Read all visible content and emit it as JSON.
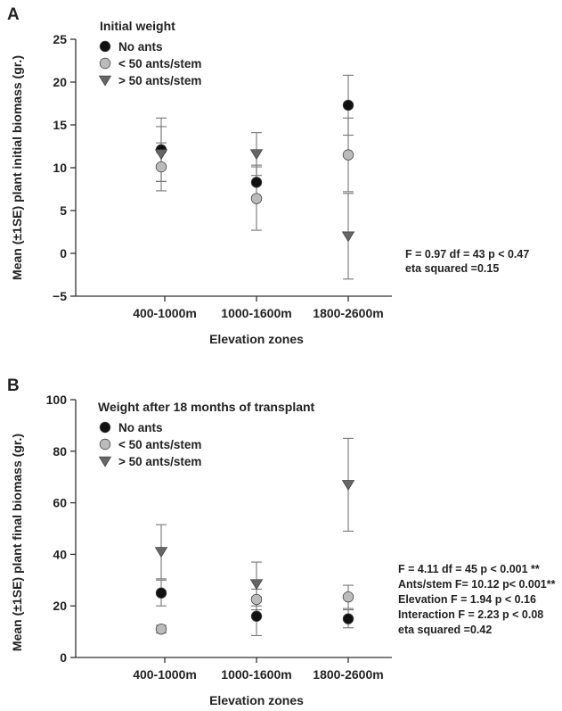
{
  "chart_data": [
    {
      "panel": "A",
      "type": "scatter",
      "title": "Initial weight",
      "xlabel": "Elevation zones",
      "ylabel": "Mean (±1SE) plant initial biomass (gr.)",
      "categories": [
        "400-1000m",
        "1000-1600m",
        "1800-2600m"
      ],
      "ylim": [
        -5,
        25
      ],
      "yticks": [
        -5,
        0,
        5,
        10,
        15,
        20,
        25
      ],
      "grid": false,
      "legend_position": "top-left",
      "series": [
        {
          "name": "No ants",
          "marker": "circle",
          "color": "#111111",
          "values": [
            12.1,
            8.3,
            17.3
          ],
          "err": [
            3.7,
            2.0,
            3.5
          ]
        },
        {
          "name": "< 50 ants/stem",
          "marker": "circle",
          "color": "#bbbbbb",
          "values": [
            10.1,
            6.4,
            11.5
          ],
          "err": [
            2.8,
            3.7,
            4.3
          ]
        },
        {
          "name": "> 50 ants/stem",
          "marker": "triangle-down",
          "color": "#666666",
          "values": [
            11.6,
            11.6,
            2.0
          ],
          "err": [
            3.2,
            2.5,
            5.0
          ]
        }
      ],
      "annotations": [
        "F = 0.97 df = 43 p < 0.47",
        "eta squared =0.15"
      ]
    },
    {
      "panel": "B",
      "type": "scatter",
      "title": "Weight after 18 months of transplant",
      "xlabel": "Elevation zones",
      "ylabel": "Mean (±1SE) plant final biomass (gr.)",
      "categories": [
        "400-1000m",
        "1000-1600m",
        "1800-2600m"
      ],
      "ylim": [
        0,
        100
      ],
      "yticks": [
        0,
        20,
        40,
        60,
        80,
        100
      ],
      "grid": false,
      "legend_position": "top-left",
      "series": [
        {
          "name": "No ants",
          "marker": "circle",
          "color": "#111111",
          "values": [
            25,
            16,
            15
          ],
          "err": [
            5,
            7.5,
            3.5
          ]
        },
        {
          "name": "< 50 ants/stem",
          "marker": "circle",
          "color": "#bbbbbb",
          "values": [
            11,
            22.5,
            23.5
          ],
          "err": [
            1.5,
            4,
            4.5
          ]
        },
        {
          "name": "> 50 ants/stem",
          "marker": "triangle-down",
          "color": "#666666",
          "values": [
            41,
            28.5,
            67
          ],
          "err": [
            10.5,
            8.5,
            18
          ]
        }
      ],
      "annotations": [
        "F = 4.11 df = 45 p < 0.001 **",
        "Ants/stem F= 10.12 p< 0.001**",
        "Elevation F = 1.94 p < 0.16",
        "Interaction F = 2.23 p < 0.08",
        "eta squared =0.42"
      ]
    }
  ]
}
